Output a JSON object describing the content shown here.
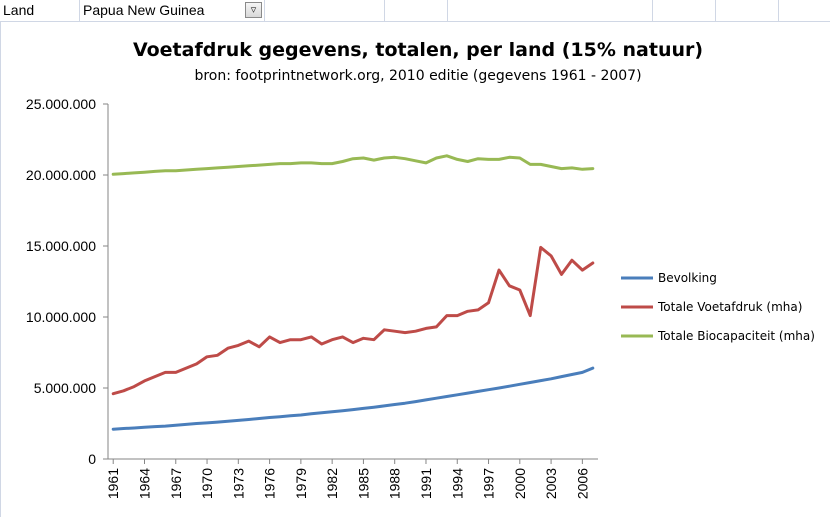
{
  "sheet": {
    "filter_label": "Land",
    "filter_value": "Papua New Guinea",
    "filter_icon": "filter-dropdown-icon"
  },
  "chart_data": {
    "type": "line",
    "title": "Voetafdruk gegevens, totalen, per land (15% natuur)",
    "subtitle": "bron: footprintnetwork.org, 2010 editie (gegevens 1961 - 2007)",
    "xlabel": "",
    "ylabel": "",
    "ylim": [
      0,
      25000000
    ],
    "yticks": [
      0,
      5000000,
      10000000,
      15000000,
      20000000,
      25000000
    ],
    "ytick_labels": [
      "0",
      "5.000.000",
      "10.000.000",
      "15.000.000",
      "20.000.000",
      "25.000.000"
    ],
    "x": [
      1961,
      1962,
      1963,
      1964,
      1965,
      1966,
      1967,
      1968,
      1969,
      1970,
      1971,
      1972,
      1973,
      1974,
      1975,
      1976,
      1977,
      1978,
      1979,
      1980,
      1981,
      1982,
      1983,
      1984,
      1985,
      1986,
      1987,
      1988,
      1989,
      1990,
      1991,
      1992,
      1993,
      1994,
      1995,
      1996,
      1997,
      1998,
      1999,
      2000,
      2001,
      2002,
      2003,
      2004,
      2005,
      2006,
      2007
    ],
    "xtick_labels": [
      "1961",
      "1964",
      "1967",
      "1970",
      "1973",
      "1976",
      "1979",
      "1982",
      "1985",
      "1988",
      "1991",
      "1994",
      "1997",
      "2000",
      "2003",
      "2006"
    ],
    "legend_position": "right",
    "series": [
      {
        "name": "Bevolking",
        "color": "#4a7ebb",
        "values": [
          2100000,
          2150000,
          2180000,
          2230000,
          2280000,
          2320000,
          2380000,
          2440000,
          2500000,
          2540000,
          2600000,
          2660000,
          2720000,
          2780000,
          2850000,
          2920000,
          2980000,
          3040000,
          3100000,
          3180000,
          3260000,
          3330000,
          3400000,
          3480000,
          3560000,
          3650000,
          3740000,
          3840000,
          3930000,
          4040000,
          4160000,
          4280000,
          4400000,
          4520000,
          4640000,
          4760000,
          4880000,
          5000000,
          5130000,
          5260000,
          5390000,
          5520000,
          5650000,
          5800000,
          5950000,
          6100000,
          6400000
        ]
      },
      {
        "name": "Totale Voetafdruk (mha)",
        "color": "#be4b48",
        "values": [
          4600000,
          4800000,
          5100000,
          5500000,
          5800000,
          6100000,
          6100000,
          6400000,
          6700000,
          7200000,
          7300000,
          7800000,
          8000000,
          8300000,
          7900000,
          8600000,
          8200000,
          8400000,
          8400000,
          8600000,
          8100000,
          8400000,
          8600000,
          8200000,
          8500000,
          8400000,
          9100000,
          9000000,
          8900000,
          9000000,
          9200000,
          9300000,
          10100000,
          10100000,
          10400000,
          10500000,
          11000000,
          13300000,
          12200000,
          11900000,
          10100000,
          14900000,
          14300000,
          13000000,
          14000000,
          13300000,
          13800000
        ]
      },
      {
        "name": "Totale Biocapaciteit  (mha)",
        "color": "#98b954",
        "values": [
          20050000,
          20100000,
          20150000,
          20200000,
          20250000,
          20300000,
          20300000,
          20350000,
          20400000,
          20450000,
          20500000,
          20550000,
          20600000,
          20650000,
          20700000,
          20750000,
          20800000,
          20800000,
          20850000,
          20850000,
          20800000,
          20800000,
          20950000,
          21150000,
          21200000,
          21050000,
          21200000,
          21250000,
          21150000,
          21000000,
          20850000,
          21200000,
          21350000,
          21100000,
          20950000,
          21150000,
          21100000,
          21100000,
          21250000,
          21200000,
          20750000,
          20750000,
          20600000,
          20450000,
          20500000,
          20400000,
          20450000
        ]
      }
    ]
  }
}
